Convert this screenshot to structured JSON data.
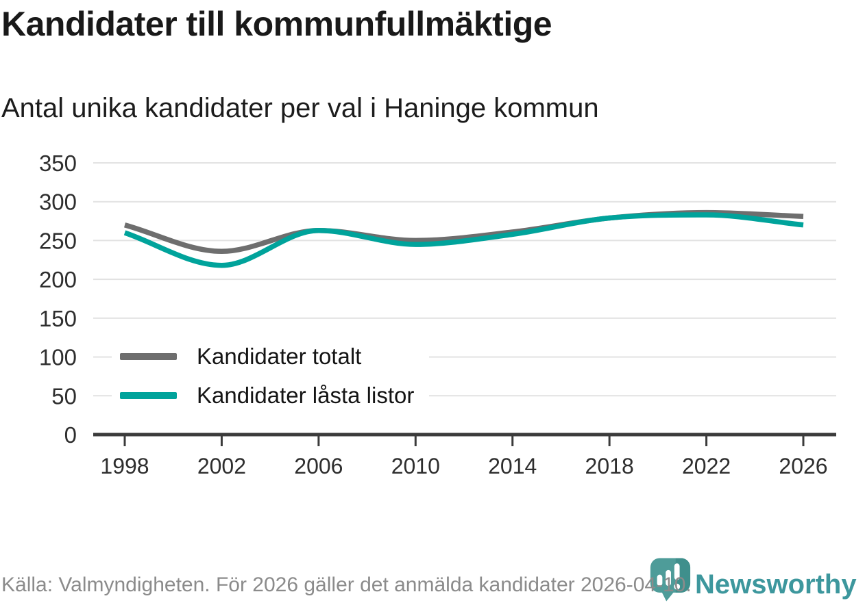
{
  "title": "Kandidater till kommunfullmäktige",
  "subtitle": "Antal unika kandidater per val i Haninge kommun",
  "footer": {
    "source_text": "Källa: Valmyndigheten. För 2026 gäller det anmälda kandidater 2026-04-10."
  },
  "logo": {
    "name": "Newsworthy",
    "icon": "newsworthy-pin-barchart-icon",
    "wordmark_color": "#3d979d",
    "icon_color": "#4e9c99",
    "icon_color_dark": "#3f8f8c",
    "icon_bar_color": "#ffffff"
  },
  "colors": {
    "series_total": "#6e6e6e",
    "series_locked": "#00a39b",
    "gridline": "#e2e2e2",
    "axis": "#3b3b3b",
    "tick_label": "#2e2e2e",
    "footer_text": "#8b8b8b"
  },
  "chart_data": {
    "type": "line",
    "x": [
      1998,
      2002,
      2006,
      2010,
      2014,
      2018,
      2022,
      2026
    ],
    "series": [
      {
        "name": "Kandidater totalt",
        "color": "#6e6e6e",
        "values": [
          270,
          236,
          263,
          250,
          261,
          279,
          286,
          281
        ]
      },
      {
        "name": "Kandidater låsta listor",
        "color": "#00a39b",
        "values": [
          260,
          218,
          263,
          245,
          258,
          279,
          283,
          270
        ]
      }
    ],
    "title": "Kandidater till kommunfullmäktige",
    "subtitle": "Antal unika kandidater per val i Haninge kommun",
    "xlabel": "",
    "ylabel": "",
    "ylim": [
      0,
      350
    ],
    "yticks": [
      0,
      50,
      100,
      150,
      200,
      250,
      300,
      350
    ],
    "grid": "horizontal",
    "legend_position": "inside-bottom-left",
    "curve": "monotone"
  }
}
